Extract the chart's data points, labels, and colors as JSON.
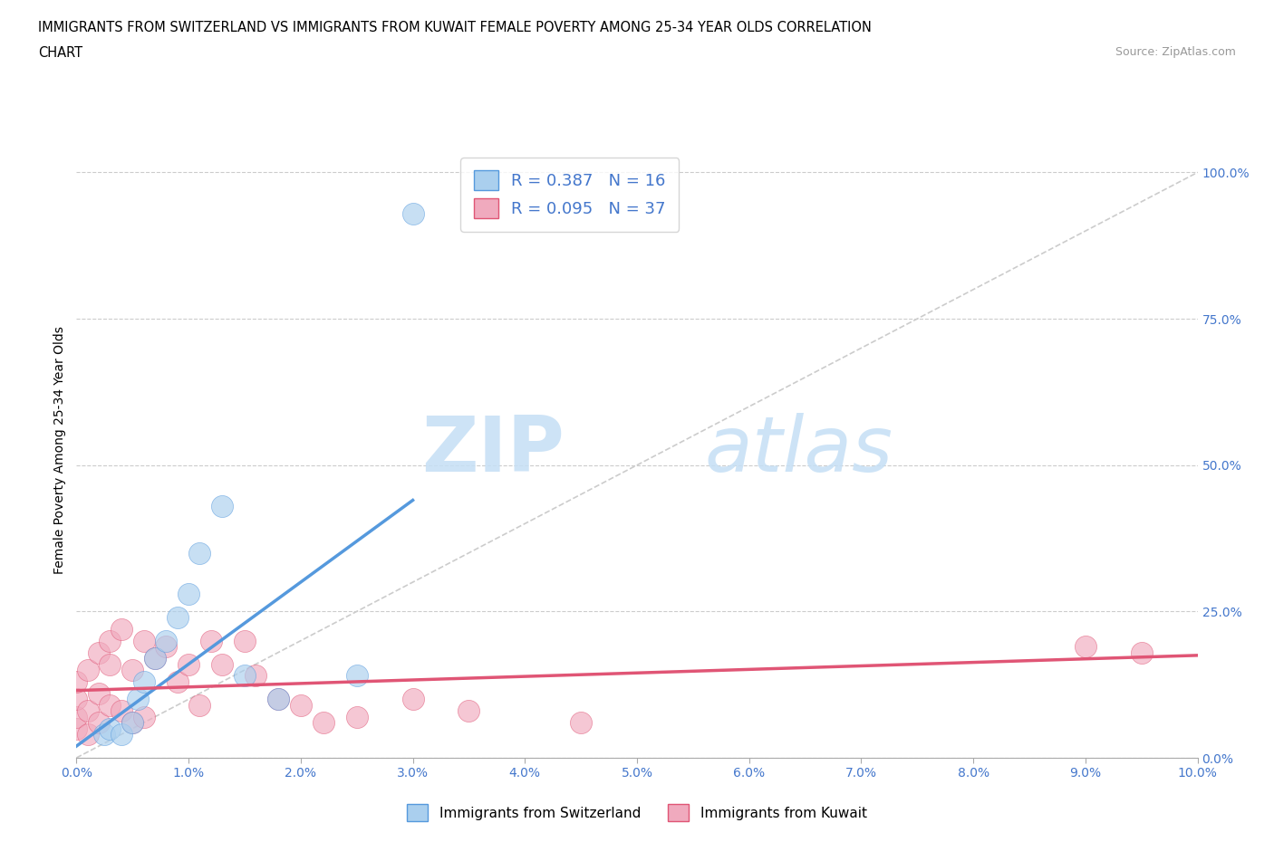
{
  "title_line1": "IMMIGRANTS FROM SWITZERLAND VS IMMIGRANTS FROM KUWAIT FEMALE POVERTY AMONG 25-34 YEAR OLDS CORRELATION",
  "title_line2": "CHART",
  "source": "Source: ZipAtlas.com",
  "ylabel": "Female Poverty Among 25-34 Year Olds",
  "xlim": [
    0.0,
    0.1
  ],
  "ylim": [
    0.0,
    1.05
  ],
  "xticks": [
    0.0,
    0.01,
    0.02,
    0.03,
    0.04,
    0.05,
    0.06,
    0.07,
    0.08,
    0.09,
    0.1
  ],
  "xticklabels": [
    "0.0%",
    "1.0%",
    "2.0%",
    "3.0%",
    "4.0%",
    "5.0%",
    "6.0%",
    "7.0%",
    "8.0%",
    "9.0%",
    "10.0%"
  ],
  "yticks": [
    0.0,
    0.25,
    0.5,
    0.75,
    1.0
  ],
  "yticklabels": [
    "0.0%",
    "25.0%",
    "50.0%",
    "75.0%",
    "100.0%"
  ],
  "r_switzerland": 0.387,
  "n_switzerland": 16,
  "r_kuwait": 0.095,
  "n_kuwait": 37,
  "color_switzerland": "#aacfee",
  "color_kuwait": "#f0aabe",
  "line_color_switzerland": "#5599dd",
  "line_color_kuwait": "#e05575",
  "diagonal_color": "#cccccc",
  "watermark_zip": "ZIP",
  "watermark_atlas": "atlas",
  "switzerland_x": [
    0.0025,
    0.003,
    0.004,
    0.005,
    0.0055,
    0.006,
    0.007,
    0.008,
    0.009,
    0.01,
    0.011,
    0.013,
    0.015,
    0.018,
    0.025,
    0.03
  ],
  "switzerland_y": [
    0.04,
    0.05,
    0.04,
    0.06,
    0.1,
    0.13,
    0.17,
    0.2,
    0.24,
    0.28,
    0.35,
    0.43,
    0.14,
    0.1,
    0.14,
    0.93
  ],
  "kuwait_x": [
    0.0,
    0.0,
    0.0,
    0.0,
    0.001,
    0.001,
    0.001,
    0.002,
    0.002,
    0.002,
    0.003,
    0.003,
    0.003,
    0.004,
    0.004,
    0.005,
    0.005,
    0.006,
    0.006,
    0.007,
    0.008,
    0.009,
    0.01,
    0.011,
    0.012,
    0.013,
    0.015,
    0.016,
    0.018,
    0.02,
    0.022,
    0.025,
    0.03,
    0.035,
    0.045,
    0.09,
    0.095
  ],
  "kuwait_y": [
    0.05,
    0.07,
    0.1,
    0.13,
    0.04,
    0.08,
    0.15,
    0.06,
    0.11,
    0.18,
    0.09,
    0.16,
    0.2,
    0.08,
    0.22,
    0.06,
    0.15,
    0.2,
    0.07,
    0.17,
    0.19,
    0.13,
    0.16,
    0.09,
    0.2,
    0.16,
    0.2,
    0.14,
    0.1,
    0.09,
    0.06,
    0.07,
    0.1,
    0.08,
    0.06,
    0.19,
    0.18
  ],
  "sw_line_x": [
    0.0,
    0.03
  ],
  "sw_line_y": [
    0.02,
    0.44
  ],
  "kw_line_x": [
    0.0,
    0.1
  ],
  "kw_line_y": [
    0.115,
    0.175
  ]
}
